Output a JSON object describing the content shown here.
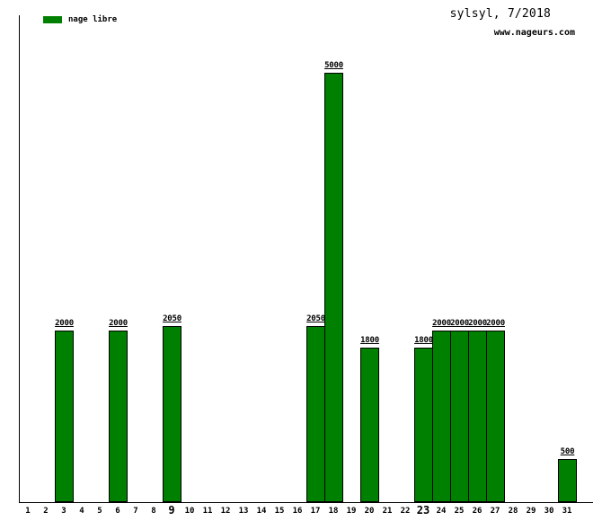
{
  "header": {
    "title": "sylsyl, 7/2018",
    "watermark": "www.nageurs.com"
  },
  "legend": {
    "label": "nage libre",
    "swatch_color": "#008000"
  },
  "chart_data": {
    "type": "bar",
    "title": "sylsyl, 7/2018",
    "xlabel": "",
    "ylabel": "",
    "legend": [
      "nage libre"
    ],
    "legend_position": "top-left",
    "grid": false,
    "ylim": [
      0,
      5000
    ],
    "bar_color": "#008000",
    "bar_border_color": "#000000",
    "x": [
      1,
      2,
      3,
      4,
      5,
      6,
      7,
      8,
      9,
      10,
      11,
      12,
      13,
      14,
      15,
      16,
      17,
      18,
      19,
      20,
      21,
      22,
      23,
      24,
      25,
      26,
      27,
      28,
      29,
      30,
      31
    ],
    "values": [
      null,
      null,
      2000,
      null,
      null,
      2000,
      null,
      null,
      2050,
      null,
      null,
      null,
      null,
      null,
      null,
      null,
      2050,
      5000,
      null,
      1800,
      null,
      null,
      1800,
      2000,
      2000,
      2000,
      2000,
      null,
      null,
      null,
      500
    ],
    "bold_x_labels": [
      9,
      23
    ],
    "value_labels_shown": true
  }
}
